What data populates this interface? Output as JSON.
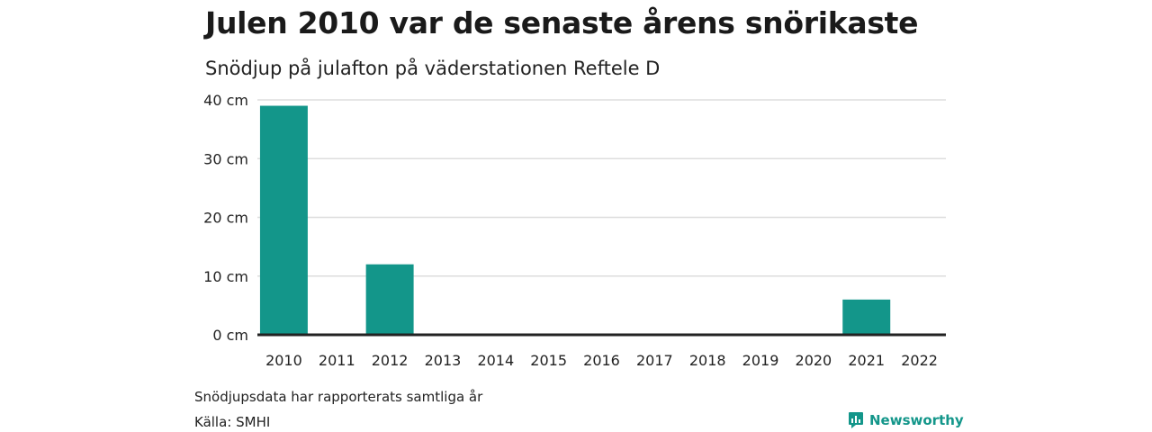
{
  "header": {
    "title": "Julen 2010 var de senaste årens snörikaste",
    "subtitle": "Snödjup på julafton på väderstationen Reftele D"
  },
  "footer": {
    "note": "Snödjupsdata har rapporterats samtliga år",
    "source": "Källa: SMHI",
    "brand": "Newsworthy"
  },
  "colors": {
    "bar": "#13968a",
    "grid": "#dddddd",
    "axis": "#222222",
    "brand": "#13968a"
  },
  "chart_data": {
    "type": "bar",
    "title": "Julen 2010 var de senaste årens snörikaste",
    "subtitle": "Snödjup på julafton på väderstationen Reftele D",
    "categories": [
      "2010",
      "2011",
      "2012",
      "2013",
      "2014",
      "2015",
      "2016",
      "2017",
      "2018",
      "2019",
      "2020",
      "2021",
      "2022"
    ],
    "values": [
      39,
      0,
      12,
      0,
      0,
      0,
      0,
      0,
      0,
      0,
      0,
      6,
      0
    ],
    "ylim": [
      0,
      40
    ],
    "yticks": [
      0,
      10,
      20,
      30,
      40
    ],
    "ytick_labels": [
      "0 cm",
      "10 cm",
      "20 cm",
      "30 cm",
      "40 cm"
    ],
    "grid": true
  }
}
